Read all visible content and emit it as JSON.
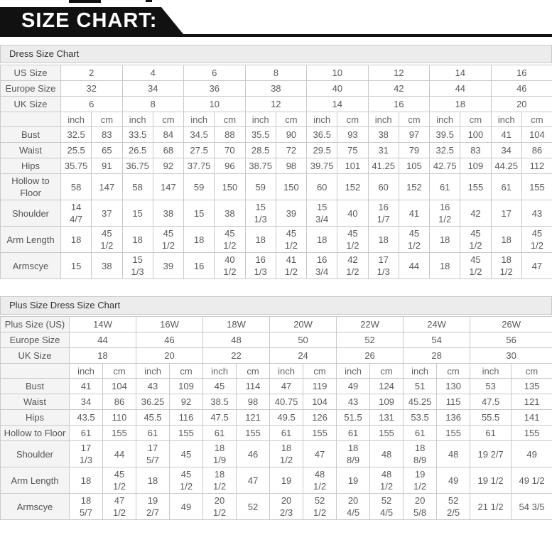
{
  "banner": {
    "title": "SIZE CHART:"
  },
  "colors": {
    "banner_bg": "#111111",
    "banner_text": "#ffffff",
    "title_bar_bg": "#ececec",
    "table_border": "#c9c9c9",
    "label_bg": "#f4f4f4",
    "text": "#595959"
  },
  "tables": [
    {
      "title": "Dress Size Chart",
      "unit_labels": [
        "inch",
        "cm"
      ],
      "size_rows": [
        {
          "label": "US Size",
          "values": [
            "2",
            "4",
            "6",
            "8",
            "10",
            "12",
            "14",
            "16"
          ]
        },
        {
          "label": "Europe Size",
          "values": [
            "32",
            "34",
            "36",
            "38",
            "40",
            "42",
            "44",
            "46"
          ]
        },
        {
          "label": "UK Size",
          "values": [
            "6",
            "8",
            "10",
            "12",
            "14",
            "16",
            "18",
            "20"
          ]
        }
      ],
      "measurement_rows": [
        {
          "label": "Bust",
          "values": [
            [
              "32.5",
              "83"
            ],
            [
              "33.5",
              "84"
            ],
            [
              "34.5",
              "88"
            ],
            [
              "35.5",
              "90"
            ],
            [
              "36.5",
              "93"
            ],
            [
              "38",
              "97"
            ],
            [
              "39.5",
              "100"
            ],
            [
              "41",
              "104"
            ]
          ]
        },
        {
          "label": "Waist",
          "values": [
            [
              "25.5",
              "65"
            ],
            [
              "26.5",
              "68"
            ],
            [
              "27.5",
              "70"
            ],
            [
              "28.5",
              "72"
            ],
            [
              "29.5",
              "75"
            ],
            [
              "31",
              "79"
            ],
            [
              "32.5",
              "83"
            ],
            [
              "34",
              "86"
            ]
          ]
        },
        {
          "label": "Hips",
          "values": [
            [
              "35.75",
              "91"
            ],
            [
              "36.75",
              "92"
            ],
            [
              "37.75",
              "96"
            ],
            [
              "38.75",
              "98"
            ],
            [
              "39.75",
              "101"
            ],
            [
              "41.25",
              "105"
            ],
            [
              "42.75",
              "109"
            ],
            [
              "44.25",
              "112"
            ]
          ]
        },
        {
          "label": "Hollow to Floor",
          "values": [
            [
              "58",
              "147"
            ],
            [
              "58",
              "147"
            ],
            [
              "59",
              "150"
            ],
            [
              "59",
              "150"
            ],
            [
              "60",
              "152"
            ],
            [
              "60",
              "152"
            ],
            [
              "61",
              "155"
            ],
            [
              "61",
              "155"
            ]
          ]
        },
        {
          "label": "Shoulder",
          "values": [
            [
              "14 4/7",
              "37"
            ],
            [
              "15",
              "38"
            ],
            [
              "15",
              "38"
            ],
            [
              "15 1/3",
              "39"
            ],
            [
              "15 3/4",
              "40"
            ],
            [
              "16 1/7",
              "41"
            ],
            [
              "16 1/2",
              "42"
            ],
            [
              "17",
              "43"
            ]
          ]
        },
        {
          "label": "Arm Length",
          "values": [
            [
              "18",
              "45 1/2"
            ],
            [
              "18",
              "45 1/2"
            ],
            [
              "18",
              "45 1/2"
            ],
            [
              "18",
              "45 1/2"
            ],
            [
              "18",
              "45 1/2"
            ],
            [
              "18",
              "45 1/2"
            ],
            [
              "18",
              "45 1/2"
            ],
            [
              "18",
              "45 1/2"
            ]
          ]
        },
        {
          "label": "Armscye",
          "values": [
            [
              "15",
              "38"
            ],
            [
              "15 1/3",
              "39"
            ],
            [
              "16",
              "40 1/2"
            ],
            [
              "16 1/3",
              "41 1/2"
            ],
            [
              "16 3/4",
              "42 1/2"
            ],
            [
              "17 1/3",
              "44"
            ],
            [
              "18",
              "45 1/2"
            ],
            [
              "18 1/2",
              "47"
            ]
          ]
        }
      ]
    },
    {
      "title": "Plus Size Dress Size Chart",
      "unit_labels": [
        "inch",
        "cm"
      ],
      "size_rows": [
        {
          "label": "Plus Size (US)",
          "values": [
            "14W",
            "16W",
            "18W",
            "20W",
            "22W",
            "24W",
            "26W"
          ]
        },
        {
          "label": "Europe Size",
          "values": [
            "44",
            "46",
            "48",
            "50",
            "52",
            "54",
            "56"
          ]
        },
        {
          "label": "UK Size",
          "values": [
            "18",
            "20",
            "22",
            "24",
            "26",
            "28",
            "30"
          ]
        }
      ],
      "measurement_rows": [
        {
          "label": "Bust",
          "values": [
            [
              "41",
              "104"
            ],
            [
              "43",
              "109"
            ],
            [
              "45",
              "114"
            ],
            [
              "47",
              "119"
            ],
            [
              "49",
              "124"
            ],
            [
              "51",
              "130"
            ],
            [
              "53",
              "135"
            ]
          ]
        },
        {
          "label": "Waist",
          "values": [
            [
              "34",
              "86"
            ],
            [
              "36.25",
              "92"
            ],
            [
              "38.5",
              "98"
            ],
            [
              "40.75",
              "104"
            ],
            [
              "43",
              "109"
            ],
            [
              "45.25",
              "115"
            ],
            [
              "47.5",
              "121"
            ]
          ]
        },
        {
          "label": "Hips",
          "values": [
            [
              "43.5",
              "110"
            ],
            [
              "45.5",
              "116"
            ],
            [
              "47.5",
              "121"
            ],
            [
              "49.5",
              "126"
            ],
            [
              "51.5",
              "131"
            ],
            [
              "53.5",
              "136"
            ],
            [
              "55.5",
              "141"
            ]
          ]
        },
        {
          "label": "Hollow to Floor",
          "values": [
            [
              "61",
              "155"
            ],
            [
              "61",
              "155"
            ],
            [
              "61",
              "155"
            ],
            [
              "61",
              "155"
            ],
            [
              "61",
              "155"
            ],
            [
              "61",
              "155"
            ],
            [
              "61",
              "155"
            ]
          ]
        },
        {
          "label": "Shoulder",
          "values": [
            [
              "17 1/3",
              "44"
            ],
            [
              "17 5/7",
              "45"
            ],
            [
              "18 1/9",
              "46"
            ],
            [
              "18 1/2",
              "47"
            ],
            [
              "18 8/9",
              "48"
            ],
            [
              "18 8/9",
              "48"
            ],
            [
              "19 2/7",
              "49"
            ]
          ]
        },
        {
          "label": "Arm Length",
          "values": [
            [
              "18",
              "45 1/2"
            ],
            [
              "18",
              "45 1/2"
            ],
            [
              "18 1/2",
              "47"
            ],
            [
              "19",
              "48 1/2"
            ],
            [
              "19",
              "48 1/2"
            ],
            [
              "19 1/2",
              "49"
            ],
            [
              "19 1/2",
              "49 1/2"
            ]
          ]
        },
        {
          "label": "Armscye",
          "values": [
            [
              "18 5/7",
              "47 1/2"
            ],
            [
              "19 2/7",
              "49"
            ],
            [
              "20 1/2",
              "52"
            ],
            [
              "20 2/3",
              "52 1/2"
            ],
            [
              "20 4/5",
              "52 4/5"
            ],
            [
              "20 5/8",
              "52 2/5"
            ],
            [
              "21 1/2",
              "54 3/5"
            ]
          ]
        }
      ]
    }
  ]
}
